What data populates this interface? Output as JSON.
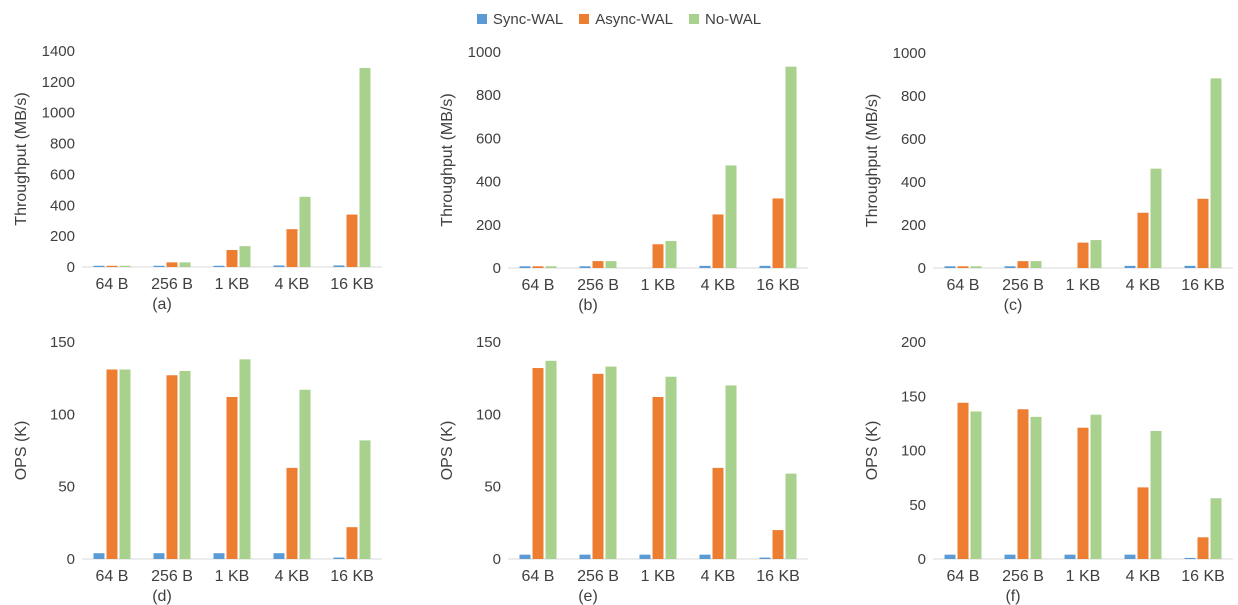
{
  "colors": {
    "sync": "#5b9bd5",
    "async": "#ed7d31",
    "nowal": "#a9d18e",
    "axis": "#d9d9d9",
    "text": "#404040"
  },
  "legend": {
    "items": [
      {
        "label": "Sync-WAL",
        "color": "#5b9bd5"
      },
      {
        "label": "Async-WAL",
        "color": "#ed7d31"
      },
      {
        "label": "No-WAL",
        "color": "#a9d18e"
      }
    ],
    "placement": "top-center"
  },
  "chart_data": [
    {
      "type": "bar",
      "caption": "(a)",
      "ylabel": "Throughput (MB/s)",
      "ylim": [
        0,
        1400
      ],
      "yticks": [
        "0",
        "200",
        "400",
        "600",
        "800",
        "1000",
        "1200",
        "1400"
      ],
      "categories": [
        "64 B",
        "256 B",
        "1 KB",
        "4 KB",
        "16 KB"
      ],
      "series": [
        {
          "name": "Sync-WAL",
          "values": [
            8,
            8,
            8,
            10,
            10
          ]
        },
        {
          "name": "Async-WAL",
          "values": [
            8,
            30,
            110,
            245,
            340
          ]
        },
        {
          "name": "No-WAL",
          "values": [
            8,
            30,
            135,
            455,
            1290
          ]
        }
      ]
    },
    {
      "type": "bar",
      "caption": "(b)",
      "ylabel": "Throughput (MB/s)",
      "ylim": [
        0,
        1000
      ],
      "yticks": [
        "0",
        "200",
        "400",
        "600",
        "800",
        "1000"
      ],
      "categories": [
        "64 B",
        "256 B",
        "1 KB",
        "4 KB",
        "16 KB"
      ],
      "series": [
        {
          "name": "Sync-WAL",
          "values": [
            8,
            8,
            0,
            10,
            10
          ]
        },
        {
          "name": "Async-WAL",
          "values": [
            8,
            32,
            110,
            248,
            322
          ]
        },
        {
          "name": "No-WAL",
          "values": [
            8,
            32,
            125,
            475,
            932
          ]
        }
      ]
    },
    {
      "type": "bar",
      "caption": "(c)",
      "ylabel": "Throughput (MB/s)",
      "ylim": [
        0,
        1000
      ],
      "yticks": [
        "0",
        "200",
        "400",
        "600",
        "800",
        "1000"
      ],
      "categories": [
        "64 B",
        "256 B",
        "1 KB",
        "4 KB",
        "16 KB"
      ],
      "series": [
        {
          "name": "Sync-WAL",
          "values": [
            8,
            8,
            0,
            10,
            10
          ]
        },
        {
          "name": "Async-WAL",
          "values": [
            8,
            32,
            118,
            257,
            322
          ]
        },
        {
          "name": "No-WAL",
          "values": [
            8,
            32,
            130,
            462,
            882
          ]
        }
      ]
    },
    {
      "type": "bar",
      "caption": "(d)",
      "ylabel": "OPS (K)",
      "ylim": [
        0,
        150
      ],
      "yticks": [
        "0",
        "50",
        "100",
        "150"
      ],
      "categories": [
        "64 B",
        "256 B",
        "1 KB",
        "4 KB",
        "16 KB"
      ],
      "series": [
        {
          "name": "Sync-WAL",
          "values": [
            4,
            4,
            4,
            4,
            1
          ]
        },
        {
          "name": "Async-WAL",
          "values": [
            131,
            127,
            112,
            63,
            22
          ]
        },
        {
          "name": "No-WAL",
          "values": [
            131,
            130,
            138,
            117,
            82
          ]
        }
      ]
    },
    {
      "type": "bar",
      "caption": "(e)",
      "ylabel": "OPS (K)",
      "ylim": [
        0,
        150
      ],
      "yticks": [
        "0",
        "50",
        "100",
        "150"
      ],
      "categories": [
        "64 B",
        "256 B",
        "1 KB",
        "4 KB",
        "16 KB"
      ],
      "series": [
        {
          "name": "Sync-WAL",
          "values": [
            3,
            3,
            3,
            3,
            1
          ]
        },
        {
          "name": "Async-WAL",
          "values": [
            132,
            128,
            112,
            63,
            20
          ]
        },
        {
          "name": "No-WAL",
          "values": [
            137,
            133,
            126,
            120,
            59
          ]
        }
      ]
    },
    {
      "type": "bar",
      "caption": "(f)",
      "ylabel": "OPS (K)",
      "ylim": [
        0,
        200
      ],
      "yticks": [
        "0",
        "50",
        "100",
        "150",
        "200"
      ],
      "categories": [
        "64 B",
        "256 B",
        "1 KB",
        "4 KB",
        "16 KB"
      ],
      "series": [
        {
          "name": "Sync-WAL",
          "values": [
            4,
            4,
            4,
            4,
            1
          ]
        },
        {
          "name": "Async-WAL",
          "values": [
            144,
            138,
            121,
            66,
            20
          ]
        },
        {
          "name": "No-WAL",
          "values": [
            136,
            131,
            133,
            118,
            56
          ]
        }
      ]
    }
  ]
}
